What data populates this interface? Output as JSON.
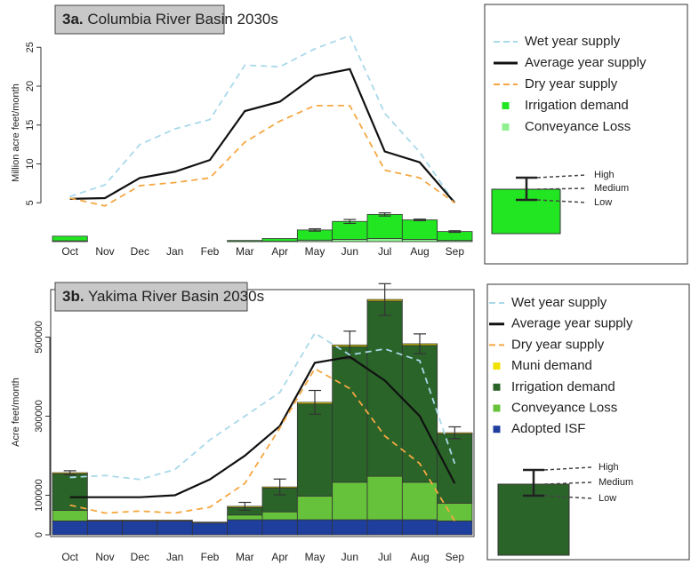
{
  "chart_data": [
    {
      "type": "bar",
      "label": "3a.",
      "title": "Columbia River Basin 2030s",
      "ylabel": "Million acre feet/month",
      "categories": [
        "Oct",
        "Nov",
        "Dec",
        "Jan",
        "Feb",
        "Mar",
        "Apr",
        "May",
        "Jun",
        "Jul",
        "Aug",
        "Sep"
      ],
      "ylim": [
        0,
        28
      ],
      "yticks": [
        5,
        10,
        15,
        20,
        25
      ],
      "series": [
        {
          "name": "Wet year supply",
          "kind": "line",
          "dashed": true,
          "color": "#a9d9ea",
          "values": [
            5.8,
            7.3,
            12.5,
            14.5,
            15.7,
            22.7,
            22.5,
            24.8,
            26.5,
            16.5,
            11.5,
            5
          ]
        },
        {
          "name": "Average year supply",
          "kind": "line",
          "dashed": false,
          "color": "#111111",
          "values": [
            5.5,
            5.6,
            8.2,
            9,
            10.5,
            16.8,
            18,
            21.3,
            22.2,
            11.6,
            10.2,
            5
          ]
        },
        {
          "name": "Dry year supply",
          "kind": "line",
          "dashed": true,
          "color": "#f5a742",
          "values": [
            5.6,
            4.6,
            7.2,
            7.6,
            8.2,
            12.8,
            15.5,
            17.5,
            17.5,
            9.2,
            8.2,
            5
          ]
        },
        {
          "name": "Irrigation demand",
          "kind": "bar",
          "color": "#22e622",
          "values": [
            0.6,
            0,
            0,
            0,
            0,
            0.13,
            0.35,
            1.3,
            2.3,
            3.1,
            2.5,
            1.15
          ]
        },
        {
          "name": "Conveyance Loss",
          "kind": "bar",
          "color": "#8ff08f",
          "values": [
            0.1,
            0,
            0,
            0,
            0,
            0.02,
            0.05,
            0.2,
            0.3,
            0.4,
            0.3,
            0.15
          ]
        }
      ],
      "errors": [
        0,
        0,
        0,
        0,
        0,
        0,
        0,
        0.15,
        0.25,
        0.2,
        0.1,
        0.1
      ],
      "legend_key": [
        "High",
        "Medium",
        "Low"
      ]
    },
    {
      "type": "bar",
      "label": "3b.",
      "title": "Yakima River Basin 2030s",
      "ylabel": "Acre feet/month",
      "frame": true,
      "categories": [
        "Oct",
        "Nov",
        "Dec",
        "Jan",
        "Feb",
        "Mar",
        "Apr",
        "May",
        "Jun",
        "Jul",
        "Aug",
        "Sep"
      ],
      "ylim": [
        0,
        620000
      ],
      "yticks": [
        0,
        100000,
        300000,
        500000
      ],
      "series": [
        {
          "name": "Wet year supply",
          "kind": "line",
          "dashed": true,
          "color": "#a9d9ea",
          "values": [
            145000,
            150000,
            140000,
            165000,
            240000,
            300000,
            360000,
            510000,
            455000,
            470000,
            440000,
            180000
          ]
        },
        {
          "name": "Average year supply",
          "kind": "line",
          "dashed": false,
          "color": "#111111",
          "values": [
            95000,
            95000,
            95000,
            100000,
            140000,
            200000,
            275000,
            435000,
            450000,
            390000,
            300000,
            130000
          ]
        },
        {
          "name": "Dry year supply",
          "kind": "line",
          "dashed": true,
          "color": "#f5a742",
          "values": [
            75000,
            55000,
            60000,
            55000,
            70000,
            130000,
            270000,
            420000,
            370000,
            250000,
            180000,
            35000
          ]
        },
        {
          "name": "Muni demand",
          "kind": "bar",
          "color": "#f2e200",
          "values": [
            3000,
            2000,
            2000,
            2000,
            2000,
            3000,
            3000,
            4000,
            4000,
            4000,
            4000,
            3000
          ]
        },
        {
          "name": "Irrigation demand",
          "kind": "bar",
          "color": "#2a6429",
          "values": [
            92000,
            0,
            0,
            0,
            0,
            19000,
            60000,
            233000,
            343000,
            443000,
            346000,
            175000
          ]
        },
        {
          "name": "Conveyance Loss",
          "kind": "bar",
          "color": "#66c23a",
          "values": [
            27000,
            0,
            0,
            0,
            0,
            12000,
            20000,
            60000,
            95000,
            110000,
            95000,
            45000
          ]
        },
        {
          "name": "Adopted ISF",
          "kind": "bar",
          "color": "#1f3f9f",
          "values": [
            35000,
            35000,
            35000,
            35000,
            30000,
            38000,
            38000,
            38000,
            38000,
            38000,
            38000,
            35000
          ]
        }
      ],
      "errors": [
        5000,
        0,
        0,
        0,
        0,
        10000,
        20000,
        30000,
        35000,
        40000,
        25000,
        15000
      ],
      "legend_key": [
        "High",
        "Medium",
        "Low"
      ]
    }
  ]
}
